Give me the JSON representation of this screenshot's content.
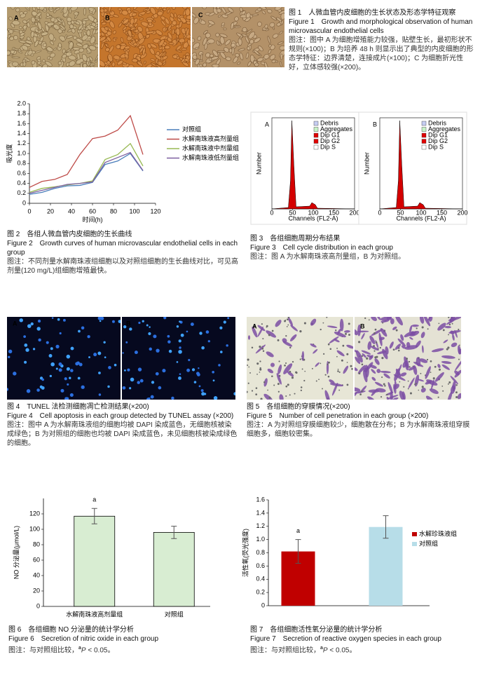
{
  "figure1": {
    "panels": [
      "A",
      "B",
      "C"
    ],
    "title_cn": "图 1　人微血管内皮细胞的生长状态及形态学特征观察",
    "title_en": "Figure 1　Growth and morphological observation of human microvascular endothelial cells",
    "note": "图注：图中 A 为细胞增殖能力较强，贴壁生长，最初形状不规则(×100)；B 为培养 48 h 则显示出了典型的内皮细胞的形态学特征：边界清楚，连接成片(×100)；C 为细胞折光性好，立体感较强(×200)。"
  },
  "figure2": {
    "title_cn": "图 2　各组人微血管内皮细胞的生长曲线",
    "title_en": "Figure 2　Growth curves of human microvascular endothelial cells in each group",
    "note": "图注：不同剂量水解南珠液组细胞以及对照组细胞的生长曲线对比，可见高剂量(120 mg/L)组细胞增殖最快。"
  },
  "figure3": {
    "panels": [
      {
        "label": "A",
        "legend": [
          "Debris",
          "Aggregates",
          "Dip G1",
          "Dip G2",
          "Dip S"
        ],
        "xlabel": "Channels (FL2-A)",
        "ylabel": "Number",
        "xticks": [
          0,
          50,
          100,
          150,
          200
        ]
      },
      {
        "label": "B",
        "legend": [
          "Debris",
          "Aggregates",
          "Dip G1",
          "Dip G2",
          "Dip S"
        ],
        "xlabel": "Channels (FL2-A)",
        "ylabel": "Number",
        "xticks": [
          0,
          50,
          100,
          150,
          200
        ]
      }
    ],
    "title_cn": "图 3　各组细胞周期分布结果",
    "title_en": "Figure 3　Cell cycle distribution in each group",
    "note": "图注：图 A 为水解南珠液高剂量组，B 为对照组。"
  },
  "figure4": {
    "panels": [
      "A",
      "B"
    ],
    "title_cn": "图 4　TUNEL 法检测细胞凋亡检测结果(×200)",
    "title_en": "Figure 4　Cell apoptosis in each group detected by TUNEL assay (×200)",
    "note": "图注：图中 A 为水解南珠液组的细胞均被 DAPI 染成蓝色，无细胞核被染成绿色；B 为对照组的细胞也均被 DAPI 染成蓝色，未见细胞核被染成绿色的细胞。"
  },
  "figure5": {
    "panels": [
      "A",
      "B"
    ],
    "title_cn": "图 5　各组细胞的穿膜情况(×200)",
    "title_en": "Figure 5　Number of cell penetration in each group (×200)",
    "note": "图注：A 为对照组穿膜细胞较少，细胞散在分布；B 为水解南珠液组穿膜细胞多，细胞较密集。"
  },
  "figure6": {
    "title_cn": "图 6　各组细胞 NO 分泌量的统计学分析",
    "title_en": "Figure 6　Secretion of nitric oxide in each group",
    "note_parts": [
      "图注：与对照组比较，",
      "a",
      "P",
      " < 0.05。"
    ]
  },
  "figure7": {
    "title_cn": "图 7　各组细胞活性氧分泌量的统计学分析",
    "title_en": "Figure 7　Secretion of reactive oxygen species in each group",
    "note_parts": [
      "图注：与对照组比较，",
      "a",
      "P",
      " < 0.05。"
    ]
  },
  "chart_data": [
    {
      "type": "line",
      "xlabel": "时间(h)",
      "ylabel": "吸光度",
      "x": [
        0,
        12,
        24,
        36,
        48,
        60,
        72,
        84,
        96,
        108
      ],
      "xlim": [
        0,
        120
      ],
      "xticks": [
        0,
        20,
        40,
        60,
        80,
        100,
        120
      ],
      "ylim": [
        0,
        2
      ],
      "yticks": [
        0,
        0.2,
        0.4,
        0.6,
        0.8,
        {
          "value": 1,
          "label": "1.0"
        },
        1.2,
        1.4,
        1.6,
        1.8,
        {
          "value": 2,
          "label": "2.0"
        }
      ],
      "series": [
        {
          "name": "对照组",
          "color": "#4a7ebb",
          "values": [
            0.18,
            0.22,
            0.3,
            0.35,
            0.36,
            0.42,
            0.78,
            0.85,
            1.0,
            0.65
          ]
        },
        {
          "name": "水解南珠液高剂量组",
          "color": "#be4b48",
          "values": [
            0.32,
            0.44,
            0.48,
            0.58,
            0.98,
            1.3,
            1.35,
            1.47,
            1.76,
            0.98
          ]
        },
        {
          "name": "水解南珠液中剂量组",
          "color": "#98b954",
          "values": [
            0.22,
            0.3,
            0.33,
            0.37,
            0.4,
            0.45,
            0.88,
            0.98,
            1.2,
            0.75
          ]
        },
        {
          "name": "水解南珠液低剂量组",
          "color": "#7d60a0",
          "values": [
            0.2,
            0.26,
            0.32,
            0.38,
            0.4,
            0.43,
            0.82,
            0.92,
            1.02,
            0.66
          ]
        }
      ]
    },
    {
      "type": "bar",
      "ylabel": "NO 分泌量(μmol/L)",
      "categories": [
        "水解南珠液高剂量组",
        "对照组"
      ],
      "values": [
        117,
        96
      ],
      "errors": [
        10,
        8
      ],
      "annotations": [
        "a",
        null
      ],
      "color": "#d8edd2",
      "ylim": [
        0,
        140
      ],
      "yticks": [
        0,
        20,
        40,
        60,
        80,
        100,
        120
      ]
    },
    {
      "type": "bar",
      "ylabel": "活性氧(荧光强度)",
      "ylim": [
        0,
        1.6
      ],
      "yticks": [
        0,
        0.2,
        0.4,
        0.6,
        0.8,
        {
          "value": 1,
          "label": "1.0"
        },
        1.2,
        1.4,
        1.6
      ],
      "series": [
        {
          "name": "水解珍珠液组",
          "color": "#c00000",
          "values": [
            0.82
          ],
          "errors": [
            0.18
          ],
          "annotations": [
            "a"
          ]
        },
        {
          "name": "对照组",
          "color": "#b7dde8",
          "values": [
            1.19
          ],
          "errors": [
            0.17
          ]
        }
      ]
    }
  ]
}
